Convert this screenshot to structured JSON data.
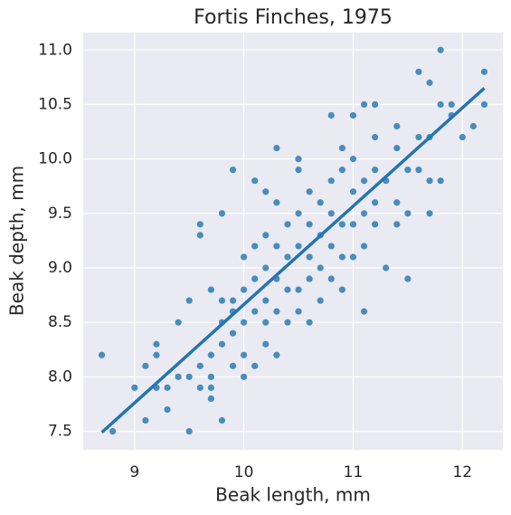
{
  "chart_data": {
    "type": "scatter",
    "title": "Fortis Finches, 1975",
    "x_label": "Beak length, mm",
    "y_label": "Beak depth, mm",
    "color": "#2a7bb5",
    "grid": true,
    "xlim": [
      8.53,
      12.37
    ],
    "ylim": [
      7.33,
      11.16
    ],
    "xticks": [
      9,
      10,
      11,
      12
    ],
    "yticks": [
      7.5,
      {
        "value": 8,
        "label": "8.0"
      },
      8.5,
      {
        "value": 9,
        "label": "9.0"
      },
      9.5,
      {
        "value": 10,
        "label": "10.0"
      },
      10.5,
      {
        "value": 11,
        "label": "11.0"
      }
    ],
    "x": [
      8.7,
      8.8,
      9.0,
      9.1,
      9.1,
      9.2,
      9.2,
      9.2,
      9.3,
      9.3,
      9.4,
      9.4,
      9.5,
      9.5,
      9.5,
      9.6,
      9.6,
      9.6,
      9.6,
      9.7,
      9.7,
      9.7,
      9.7,
      9.7,
      9.8,
      9.8,
      9.8,
      9.8,
      9.8,
      9.9,
      9.9,
      9.9,
      9.9,
      9.9,
      10.0,
      10.0,
      10.0,
      10.0,
      10.0,
      10.1,
      10.1,
      10.1,
      10.1,
      10.1,
      10.2,
      10.2,
      10.2,
      10.2,
      10.2,
      10.2,
      10.3,
      10.3,
      10.3,
      10.3,
      10.3,
      10.3,
      10.4,
      10.4,
      10.4,
      10.4,
      10.5,
      10.5,
      10.5,
      10.5,
      10.5,
      10.5,
      10.6,
      10.6,
      10.6,
      10.6,
      10.6,
      10.7,
      10.7,
      10.7,
      10.7,
      10.8,
      10.8,
      10.8,
      10.8,
      10.8,
      10.9,
      10.9,
      10.9,
      10.9,
      10.9,
      11.0,
      11.0,
      11.0,
      11.0,
      11.0,
      11.1,
      11.1,
      11.1,
      11.1,
      11.1,
      11.2,
      11.2,
      11.2,
      11.2,
      11.2,
      11.3,
      11.3,
      11.4,
      11.4,
      11.4,
      11.4,
      11.5,
      11.5,
      11.5,
      11.6,
      11.6,
      11.6,
      11.7,
      11.7,
      11.7,
      11.7,
      11.8,
      11.8,
      11.8,
      11.9,
      11.9,
      12.0,
      12.1,
      12.2,
      12.2
    ],
    "y": [
      8.2,
      7.5,
      7.9,
      8.1,
      7.6,
      8.3,
      8.2,
      7.9,
      7.7,
      7.9,
      8.5,
      8.0,
      8.7,
      8.0,
      7.5,
      9.4,
      9.3,
      8.1,
      7.9,
      7.9,
      7.8,
      8.8,
      8.2,
      8.0,
      7.6,
      9.5,
      8.7,
      8.5,
      8.3,
      9.9,
      8.7,
      8.6,
      8.1,
      8.4,
      9.1,
      8.8,
      8.5,
      8.2,
      8.0,
      9.8,
      9.2,
      8.9,
      8.6,
      8.1,
      9.7,
      9.3,
      9.0,
      8.7,
      8.5,
      8.3,
      10.1,
      9.6,
      9.2,
      8.9,
      8.6,
      8.2,
      9.4,
      9.1,
      8.8,
      8.5,
      10.0,
      9.9,
      9.5,
      9.2,
      8.8,
      8.6,
      9.7,
      9.4,
      9.1,
      8.9,
      8.5,
      9.6,
      9.3,
      9.0,
      8.7,
      9.8,
      9.5,
      9.2,
      8.9,
      10.4,
      10.1,
      9.9,
      9.4,
      9.1,
      8.8,
      10.4,
      10.0,
      9.7,
      9.4,
      9.1,
      10.5,
      9.8,
      9.5,
      9.2,
      8.6,
      10.5,
      10.2,
      9.9,
      9.6,
      9.4,
      9.8,
      9.0,
      10.1,
      9.6,
      9.4,
      10.3,
      9.9,
      9.5,
      8.9,
      10.8,
      10.2,
      9.9,
      10.2,
      9.8,
      9.5,
      10.7,
      10.5,
      9.8,
      11.0,
      10.5,
      10.4,
      10.2,
      10.3,
      10.8,
      10.5
    ],
    "regression": {
      "x": [
        8.7,
        12.2
      ],
      "y": [
        7.49,
        10.65
      ],
      "color": "#2474b0"
    }
  }
}
